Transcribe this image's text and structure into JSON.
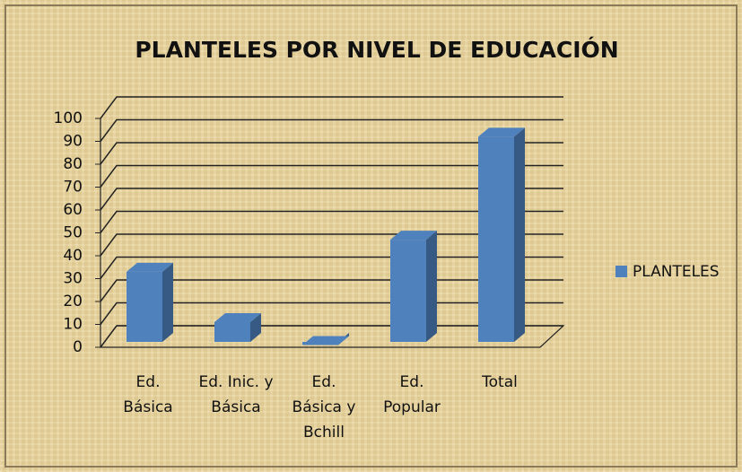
{
  "chart_data": {
    "type": "bar3d",
    "title": "PLANTELES POR NIVEL DE EDUCACIÓN",
    "categories": [
      "Ed. Básica",
      "Ed. Inic. y Básica",
      "Ed. Básica y Bchill",
      "Ed. Popular",
      "Total"
    ],
    "series": [
      {
        "name": "PLANTELES",
        "color": "#4f81bd",
        "values": [
          33,
          11,
          1,
          47,
          92
        ]
      }
    ],
    "ylim": [
      0,
      100
    ],
    "yticks": [
      0,
      10,
      20,
      30,
      40,
      50,
      60,
      70,
      80,
      90,
      100
    ],
    "grid": true,
    "legend": "right"
  }
}
